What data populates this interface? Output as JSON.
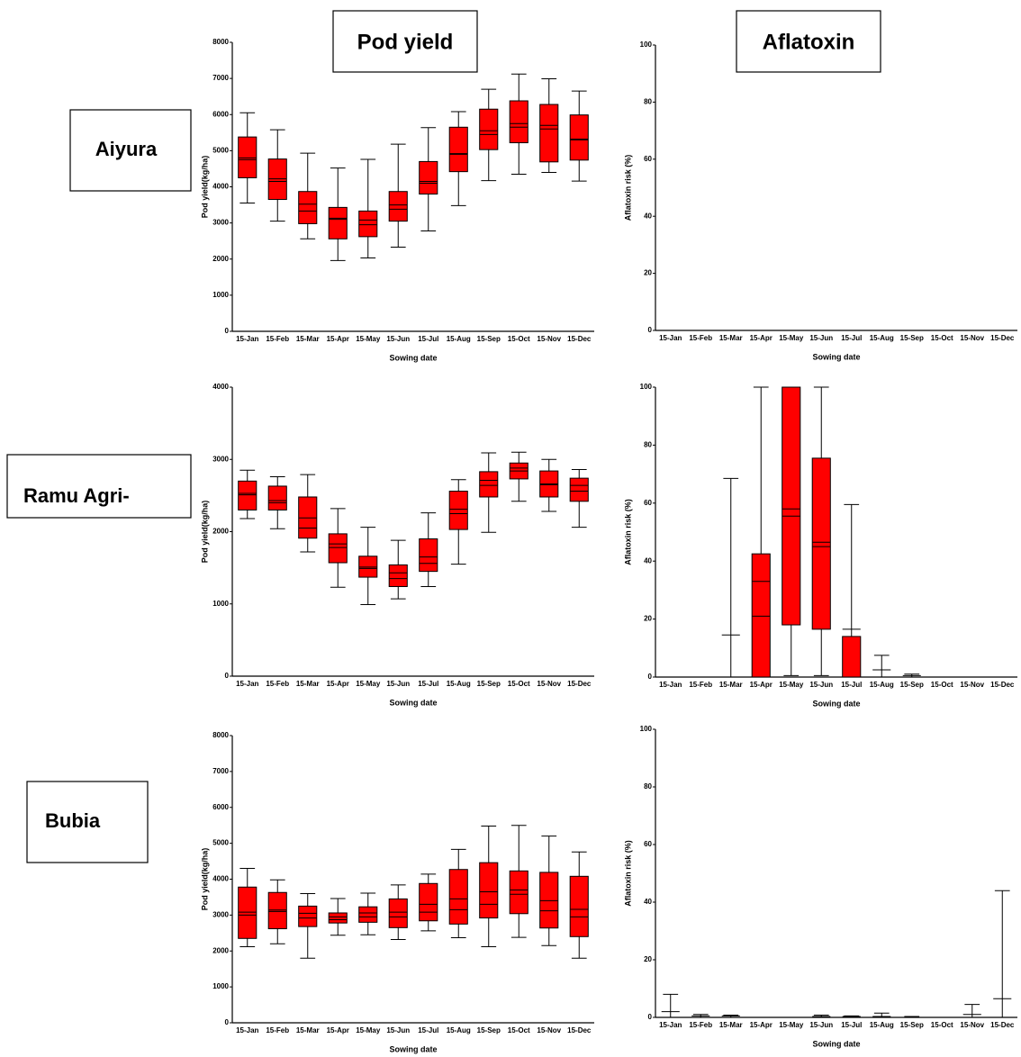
{
  "column_titles": [
    "Pod yield",
    "Aflatoxin"
  ],
  "row_titles": [
    "Aiyura",
    "Ramu Agri-",
    "Bubia"
  ],
  "chart_data": [
    {
      "type": "box",
      "x_label": "Sowing date",
      "y_label": "Pod yield(kg/ha)",
      "color": "#ff0000",
      "categories": [
        "15-Jan",
        "15-Feb",
        "15-Mar",
        "15-Apr",
        "15-May",
        "15-Jun",
        "15-Jul",
        "15-Aug",
        "15-Sep",
        "15-Oct",
        "15-Nov",
        "15-Dec"
      ],
      "ylim": [
        0,
        8000
      ],
      "yticks": [
        0,
        1000,
        2000,
        3000,
        4000,
        5000,
        6000,
        7000,
        8000
      ],
      "boxes": {
        "min": [
          3550,
          3050,
          2560,
          1960,
          2030,
          2330,
          2780,
          3480,
          4170,
          4350,
          4400,
          4160
        ],
        "q1": [
          4250,
          3650,
          2980,
          2560,
          2620,
          3050,
          3800,
          4420,
          5030,
          5220,
          4690,
          4740
        ],
        "median": [
          4800,
          4220,
          3520,
          3130,
          3080,
          3500,
          4150,
          4920,
          5550,
          5750,
          5700,
          5320
        ],
        "mean": [
          4750,
          4150,
          3330,
          3100,
          2950,
          3380,
          4100,
          4900,
          5450,
          5650,
          5600,
          5300
        ],
        "q3": [
          5380,
          4770,
          3870,
          3430,
          3330,
          3870,
          4700,
          5650,
          6150,
          6380,
          6280,
          5990
        ],
        "max": [
          6050,
          5580,
          4930,
          4520,
          4760,
          5180,
          5640,
          6080,
          6700,
          7120,
          6990,
          6650
        ]
      }
    },
    {
      "type": "box",
      "x_label": "Sowing date",
      "y_label": "Aflatoxin risk (%)",
      "color": "#ff0000",
      "categories": [
        "15-Jan",
        "15-Feb",
        "15-Mar",
        "15-Apr",
        "15-May",
        "15-Jun",
        "15-Jul",
        "15-Aug",
        "15-Sep",
        "15-Oct",
        "15-Nov",
        "15-Dec"
      ],
      "ylim": [
        0,
        100
      ],
      "yticks": [
        0,
        20,
        40,
        60,
        80,
        100
      ],
      "boxes": {
        "min": [
          0,
          0,
          0,
          0,
          0,
          0,
          0,
          0,
          0,
          0,
          0,
          0
        ],
        "q1": [
          0,
          0,
          0,
          0,
          0,
          0,
          0,
          0,
          0,
          0,
          0,
          0
        ],
        "median": [
          0,
          0,
          0,
          0,
          0,
          0,
          0,
          0,
          0,
          0,
          0,
          0
        ],
        "mean": [
          0,
          0,
          0,
          0,
          0,
          0,
          0,
          0,
          0,
          0,
          0,
          0
        ],
        "q3": [
          0,
          0,
          0,
          0,
          0,
          0,
          0,
          0,
          0,
          0,
          0,
          0
        ],
        "max": [
          0,
          0,
          0,
          0,
          0,
          0,
          0,
          0,
          0,
          0,
          0,
          0
        ]
      }
    },
    {
      "type": "box",
      "x_label": "Sowing date",
      "y_label": "Pod yield(kg/ha)",
      "color": "#ff0000",
      "categories": [
        "15-Jan",
        "15-Feb",
        "15-Mar",
        "15-Apr",
        "15-May",
        "15-Jun",
        "15-Jul",
        "15-Aug",
        "15-Sep",
        "15-Oct",
        "15-Nov",
        "15-Dec"
      ],
      "ylim": [
        0,
        4000
      ],
      "yticks": [
        0,
        1000,
        2000,
        3000,
        4000
      ],
      "boxes": {
        "min": [
          2180,
          2040,
          1720,
          1230,
          990,
          1070,
          1240,
          1550,
          1990,
          2420,
          2280,
          2060
        ],
        "q1": [
          2300,
          2300,
          1910,
          1570,
          1370,
          1240,
          1450,
          2030,
          2480,
          2730,
          2480,
          2420
        ],
        "median": [
          2530,
          2430,
          2190,
          1830,
          1510,
          1430,
          1650,
          2310,
          2710,
          2880,
          2660,
          2640
        ],
        "mean": [
          2510,
          2400,
          2050,
          1780,
          1490,
          1350,
          1560,
          2250,
          2640,
          2840,
          2650,
          2560
        ],
        "q3": [
          2700,
          2630,
          2480,
          1970,
          1660,
          1540,
          1900,
          2560,
          2830,
          2950,
          2840,
          2740
        ],
        "max": [
          2850,
          2760,
          2790,
          2320,
          2060,
          1880,
          2260,
          2720,
          3090,
          3100,
          3000,
          2860
        ]
      }
    },
    {
      "type": "box",
      "x_label": "Sowing date",
      "y_label": "Aflatoxin risk (%)",
      "color": "#ff0000",
      "categories": [
        "15-Jan",
        "15-Feb",
        "15-Mar",
        "15-Apr",
        "15-May",
        "15-Jun",
        "15-Jul",
        "15-Aug",
        "15-Sep",
        "15-Oct",
        "15-Nov",
        "15-Dec"
      ],
      "ylim": [
        0,
        100
      ],
      "yticks": [
        0,
        20,
        40,
        60,
        80,
        100
      ],
      "boxes": {
        "min": [
          0,
          0,
          0,
          0,
          0.5,
          0.5,
          0,
          0,
          0,
          0,
          0,
          0
        ],
        "q1": [
          0,
          0,
          0,
          0,
          18,
          16.5,
          0,
          0,
          0,
          0,
          0,
          0
        ],
        "median": [
          0,
          0,
          0,
          33,
          58,
          46.5,
          0,
          0,
          0,
          0,
          0,
          0
        ],
        "mean": [
          0,
          0,
          14.5,
          21,
          55.5,
          45,
          16.5,
          2.5,
          0.5,
          0,
          0,
          0
        ],
        "q3": [
          0,
          0,
          0,
          42.5,
          100,
          75.5,
          14,
          0,
          0,
          0,
          0,
          0
        ],
        "max": [
          0,
          0,
          68.5,
          100,
          100,
          100,
          59.5,
          7.5,
          1,
          0,
          0,
          0
        ]
      }
    },
    {
      "type": "box",
      "x_label": "Sowing date",
      "y_label": "Pod yield(kg/ha)",
      "color": "#ff0000",
      "categories": [
        "15-Jan",
        "15-Feb",
        "15-Mar",
        "15-Apr",
        "15-May",
        "15-Jun",
        "15-Jul",
        "15-Aug",
        "15-Sep",
        "15-Oct",
        "15-Nov",
        "15-Dec"
      ],
      "ylim": [
        0,
        8000
      ],
      "yticks": [
        0,
        1000,
        2000,
        3000,
        4000,
        5000,
        6000,
        7000,
        8000
      ],
      "boxes": {
        "min": [
          2120,
          2200,
          1800,
          2440,
          2450,
          2320,
          2560,
          2370,
          2120,
          2380,
          2150,
          1800
        ],
        "q1": [
          2350,
          2620,
          2680,
          2780,
          2800,
          2650,
          2840,
          2750,
          2920,
          3040,
          2640,
          2400
        ],
        "median": [
          3080,
          3140,
          3050,
          2950,
          3060,
          3080,
          3300,
          3450,
          3650,
          3700,
          3400,
          3160
        ],
        "mean": [
          3000,
          3100,
          2920,
          2870,
          2950,
          2950,
          3080,
          3150,
          3300,
          3580,
          3120,
          2950
        ],
        "q3": [
          3780,
          3630,
          3250,
          3060,
          3230,
          3450,
          3880,
          4270,
          4460,
          4230,
          4190,
          4080
        ],
        "max": [
          4300,
          3980,
          3600,
          3460,
          3610,
          3840,
          4140,
          4830,
          5480,
          5500,
          5200,
          4760
        ]
      }
    },
    {
      "type": "box",
      "x_label": "Sowing date",
      "y_label": "Aflatoxin risk (%)",
      "color": "#ff0000",
      "categories": [
        "15-Jan",
        "15-Feb",
        "15-Mar",
        "15-Apr",
        "15-May",
        "15-Jun",
        "15-Jul",
        "15-Aug",
        "15-Sep",
        "15-Oct",
        "15-Nov",
        "15-Dec"
      ],
      "ylim": [
        0,
        100
      ],
      "yticks": [
        0,
        20,
        40,
        60,
        80,
        100
      ],
      "boxes": {
        "min": [
          0,
          0,
          0,
          0,
          0,
          0,
          0,
          0,
          0,
          0,
          0,
          0
        ],
        "q1": [
          0,
          0,
          0,
          0,
          0,
          0,
          0,
          0,
          0,
          0,
          0,
          0
        ],
        "median": [
          0,
          0,
          0,
          0,
          0,
          0,
          0,
          0,
          0,
          0,
          0,
          0
        ],
        "mean": [
          2,
          0.5,
          0.5,
          0,
          0,
          0.3,
          0.3,
          0.3,
          0,
          0,
          1,
          6.5
        ],
        "q3": [
          0,
          0,
          0,
          0,
          0,
          0,
          0,
          0,
          0,
          0,
          0,
          0
        ],
        "max": [
          8,
          1,
          0.8,
          0,
          0,
          0.8,
          0.5,
          1.5,
          0.3,
          0,
          4.5,
          44
        ]
      }
    }
  ]
}
